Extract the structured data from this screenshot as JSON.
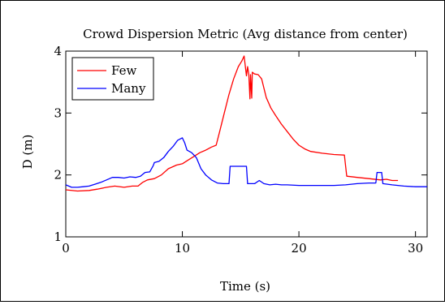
{
  "chart_data": {
    "type": "line",
    "title": "Crowd Dispersion Metric (Avg distance from center)",
    "xlabel": "Time (s)",
    "ylabel": "D (m)",
    "xlim": [
      0,
      31
    ],
    "ylim": [
      1,
      4
    ],
    "x_ticks": [
      0,
      10,
      20,
      30
    ],
    "x_tick_labels": [
      "0",
      "10",
      "20",
      "30"
    ],
    "y_ticks": [
      1,
      2,
      3,
      4
    ],
    "y_tick_labels": [
      "1",
      "2",
      "3",
      "4"
    ],
    "grid": false,
    "legend_position": "top-left",
    "series": [
      {
        "name": "Few",
        "color": "#ff0000",
        "points": [
          [
            0,
            1.76
          ],
          [
            1,
            1.74
          ],
          [
            2,
            1.75
          ],
          [
            2.7,
            1.77
          ],
          [
            3.5,
            1.8
          ],
          [
            4.2,
            1.82
          ],
          [
            5,
            1.8
          ],
          [
            5.7,
            1.82
          ],
          [
            6.2,
            1.82
          ],
          [
            6.6,
            1.88
          ],
          [
            7,
            1.92
          ],
          [
            7.6,
            1.94
          ],
          [
            8.2,
            2.0
          ],
          [
            8.8,
            2.1
          ],
          [
            9.5,
            2.16
          ],
          [
            10,
            2.18
          ],
          [
            10.5,
            2.24
          ],
          [
            11,
            2.3
          ],
          [
            11.5,
            2.36
          ],
          [
            12,
            2.4
          ],
          [
            12.5,
            2.45
          ],
          [
            12.9,
            2.48
          ],
          [
            13.2,
            2.7
          ],
          [
            13.6,
            3.0
          ],
          [
            14,
            3.3
          ],
          [
            14.4,
            3.55
          ],
          [
            14.8,
            3.75
          ],
          [
            15.1,
            3.84
          ],
          [
            15.3,
            3.92
          ],
          [
            15.5,
            3.6
          ],
          [
            15.6,
            3.75
          ],
          [
            15.7,
            3.62
          ],
          [
            15.8,
            3.23
          ],
          [
            15.85,
            3.62
          ],
          [
            15.95,
            3.24
          ],
          [
            16,
            3.66
          ],
          [
            16.2,
            3.63
          ],
          [
            16.5,
            3.62
          ],
          [
            16.8,
            3.55
          ],
          [
            17.2,
            3.25
          ],
          [
            17.6,
            3.08
          ],
          [
            18,
            2.96
          ],
          [
            18.5,
            2.82
          ],
          [
            19,
            2.7
          ],
          [
            19.5,
            2.58
          ],
          [
            20,
            2.48
          ],
          [
            20.5,
            2.42
          ],
          [
            21,
            2.38
          ],
          [
            22,
            2.35
          ],
          [
            23,
            2.33
          ],
          [
            23.9,
            2.32
          ],
          [
            24.1,
            1.98
          ],
          [
            25,
            1.96
          ],
          [
            26,
            1.94
          ],
          [
            27,
            1.92
          ],
          [
            27.5,
            1.93
          ],
          [
            28,
            1.91
          ],
          [
            28.5,
            1.91
          ]
        ]
      },
      {
        "name": "Many",
        "color": "#0000ff",
        "points": [
          [
            0,
            1.84
          ],
          [
            0.5,
            1.8
          ],
          [
            1,
            1.8
          ],
          [
            1.5,
            1.81
          ],
          [
            2,
            1.82
          ],
          [
            2.5,
            1.85
          ],
          [
            3,
            1.88
          ],
          [
            3.5,
            1.92
          ],
          [
            4,
            1.96
          ],
          [
            4.5,
            1.96
          ],
          [
            5,
            1.95
          ],
          [
            5.5,
            1.97
          ],
          [
            6,
            1.96
          ],
          [
            6.4,
            1.98
          ],
          [
            6.8,
            2.04
          ],
          [
            7.2,
            2.05
          ],
          [
            7.5,
            2.15
          ],
          [
            7.6,
            2.2
          ],
          [
            8,
            2.22
          ],
          [
            8.4,
            2.28
          ],
          [
            8.8,
            2.38
          ],
          [
            9.2,
            2.46
          ],
          [
            9.6,
            2.56
          ],
          [
            10,
            2.6
          ],
          [
            10.2,
            2.52
          ],
          [
            10.4,
            2.4
          ],
          [
            10.8,
            2.36
          ],
          [
            11.2,
            2.28
          ],
          [
            11.6,
            2.1
          ],
          [
            12,
            2.0
          ],
          [
            12.5,
            1.92
          ],
          [
            13,
            1.87
          ],
          [
            13.5,
            1.86
          ],
          [
            14,
            1.86
          ],
          [
            14.1,
            2.14
          ],
          [
            15.5,
            2.14
          ],
          [
            15.6,
            1.86
          ],
          [
            16.2,
            1.86
          ],
          [
            16.6,
            1.91
          ],
          [
            17,
            1.86
          ],
          [
            17.5,
            1.84
          ],
          [
            18,
            1.85
          ],
          [
            18.5,
            1.84
          ],
          [
            19,
            1.84
          ],
          [
            20,
            1.83
          ],
          [
            21,
            1.83
          ],
          [
            22,
            1.83
          ],
          [
            23,
            1.83
          ],
          [
            24,
            1.84
          ],
          [
            25,
            1.86
          ],
          [
            26,
            1.87
          ],
          [
            26.6,
            1.87
          ],
          [
            26.7,
            2.04
          ],
          [
            27.1,
            2.04
          ],
          [
            27.2,
            1.86
          ],
          [
            28,
            1.84
          ],
          [
            29,
            1.82
          ],
          [
            30,
            1.81
          ],
          [
            31,
            1.81
          ]
        ]
      }
    ]
  }
}
